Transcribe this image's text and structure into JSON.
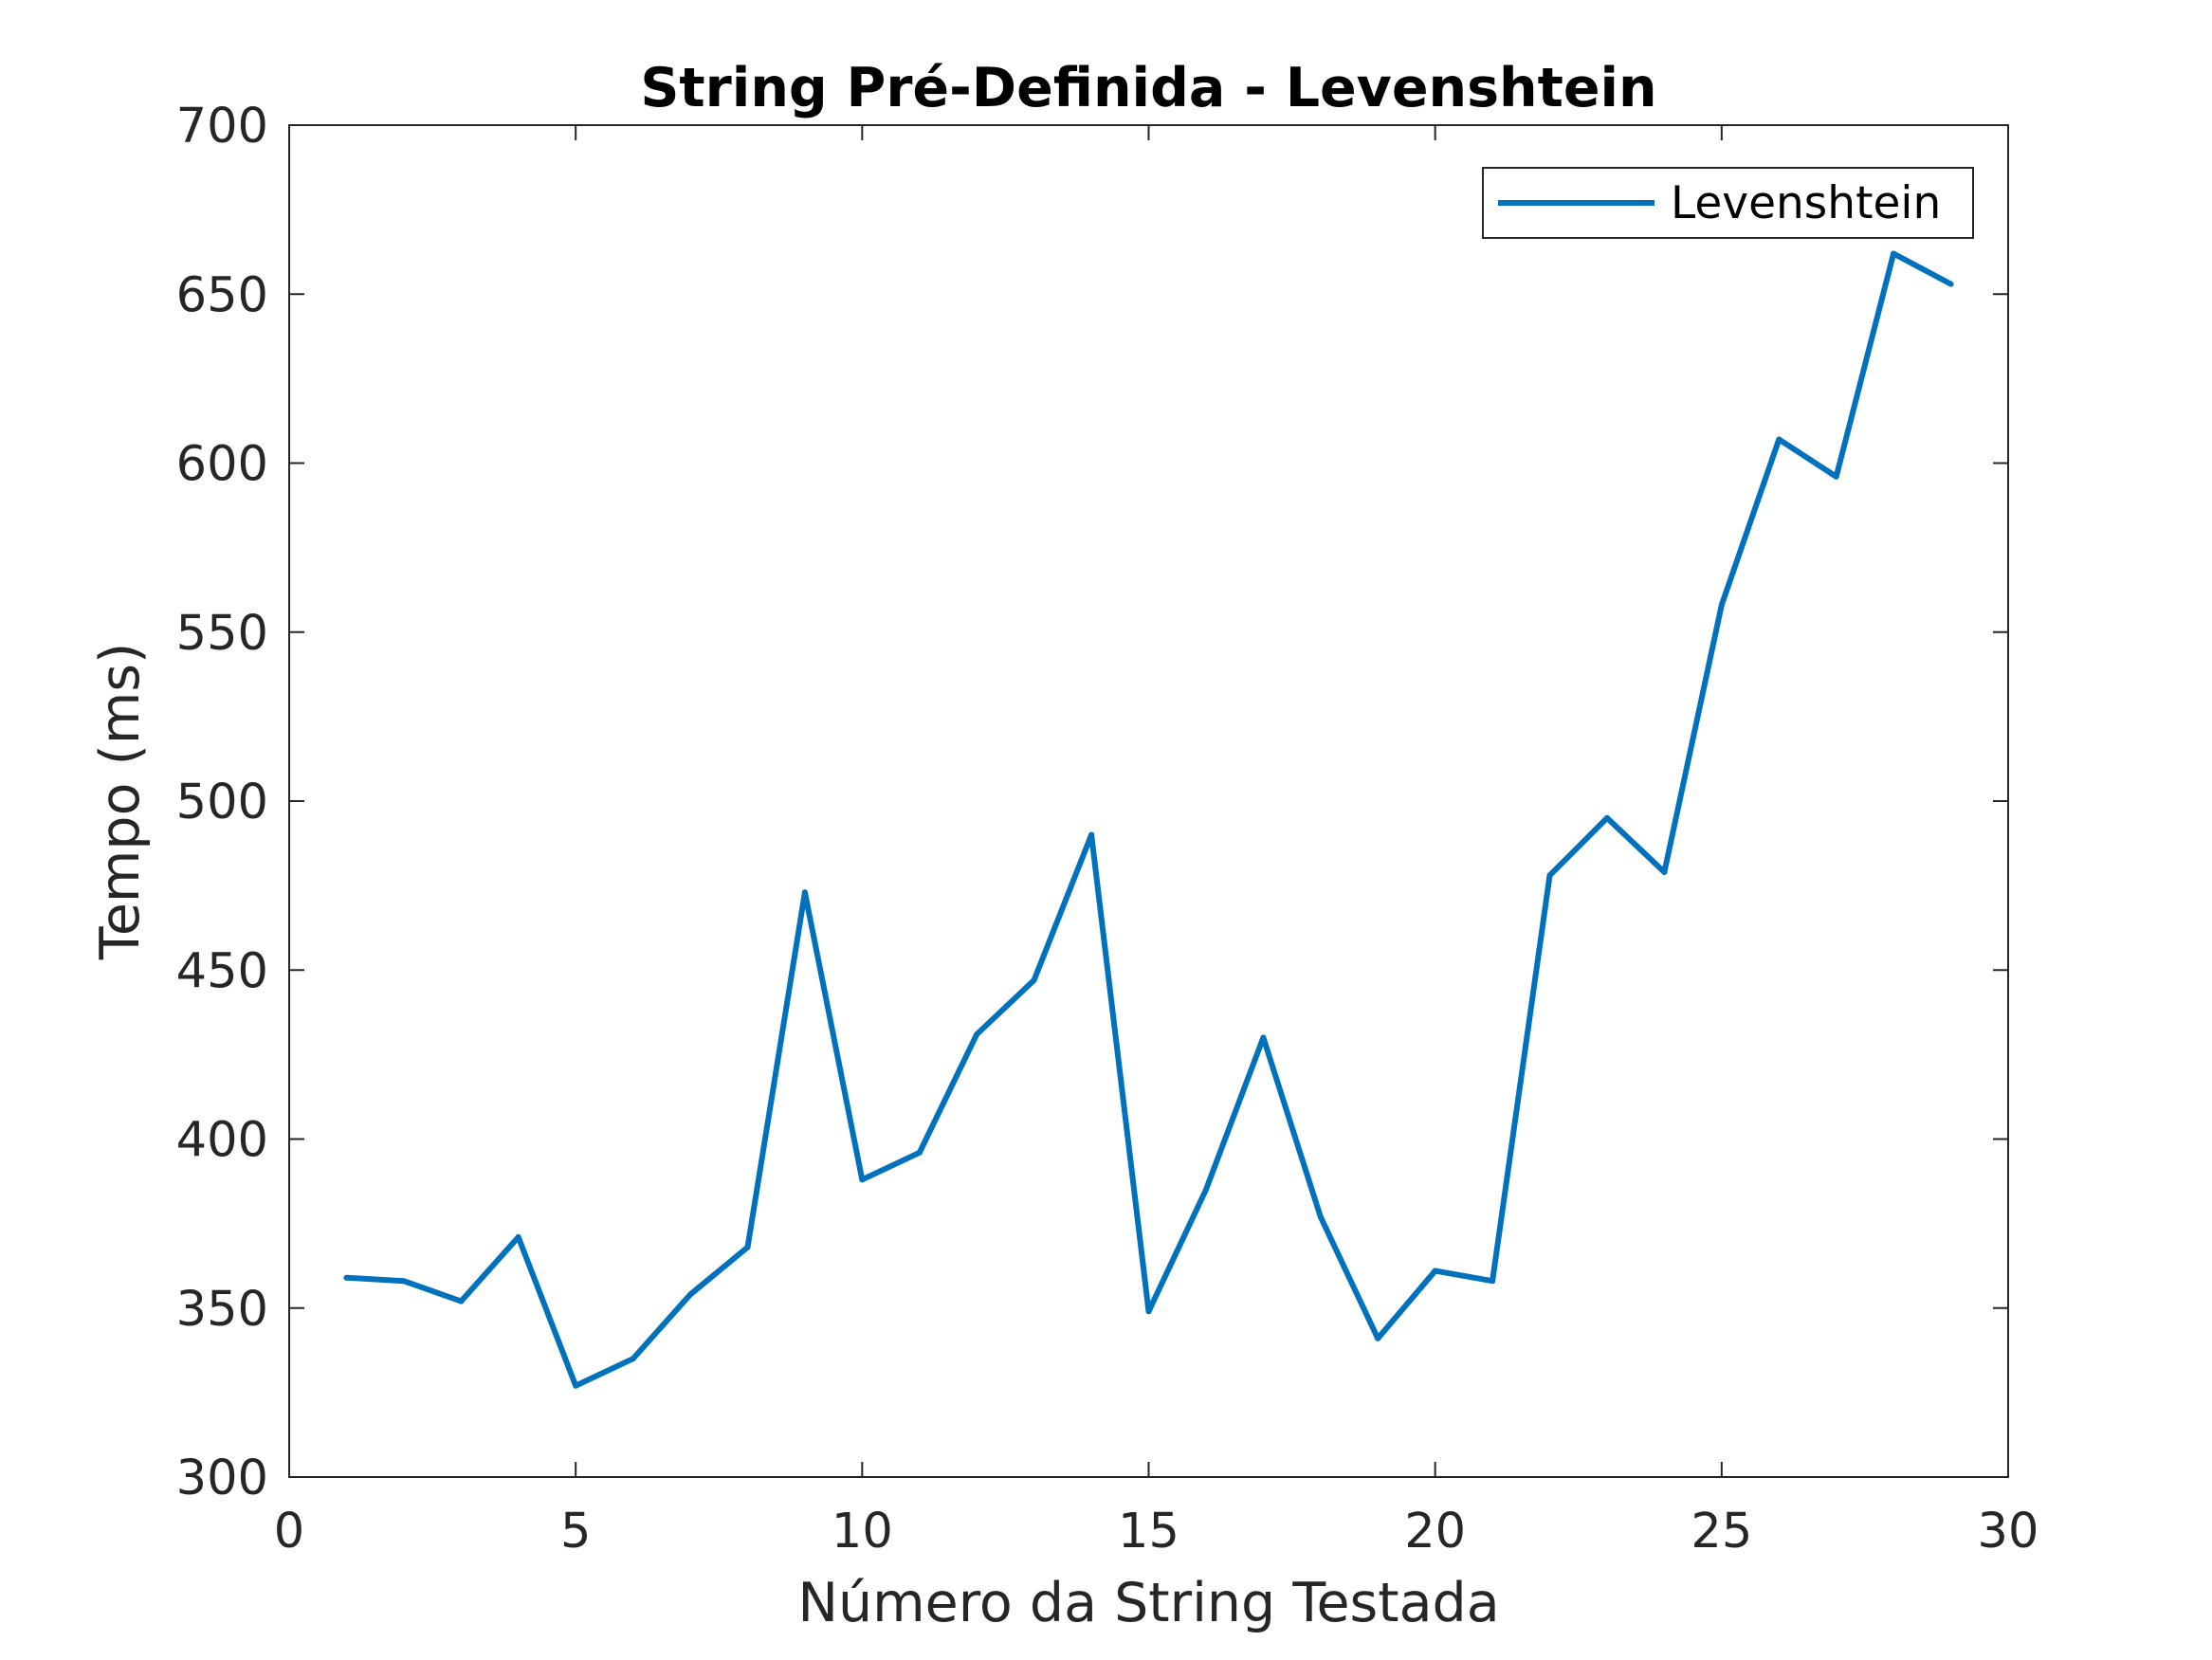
{
  "chart_data": {
    "type": "line",
    "title": "String Pré-Definida - Levenshtein",
    "xlabel": "Número da String Testada",
    "ylabel": "Tempo (ms)",
    "xlim": [
      0,
      30
    ],
    "ylim": [
      300,
      700
    ],
    "xticks": [
      0,
      5,
      10,
      15,
      20,
      25,
      30
    ],
    "yticks": [
      300,
      350,
      400,
      450,
      500,
      550,
      600,
      650,
      700
    ],
    "xtick_labels": [
      "0",
      "5",
      "10",
      "15",
      "20",
      "25",
      "30"
    ],
    "ytick_labels": [
      "300",
      "350",
      "400",
      "450",
      "500",
      "550",
      "600",
      "650",
      "700"
    ],
    "grid": false,
    "legend_position": "top-right",
    "series": [
      {
        "name": "Levenshtein",
        "color": "#0072BD",
        "x": [
          1,
          2,
          3,
          4,
          5,
          6,
          7,
          8,
          9,
          10,
          11,
          12,
          13,
          14,
          15,
          16,
          17,
          18,
          19,
          20,
          21,
          22,
          23,
          24,
          25,
          26,
          27,
          28,
          29
        ],
        "y": [
          359,
          358,
          352,
          371,
          327,
          335,
          354,
          368,
          473,
          388,
          396,
          431,
          447,
          490,
          349,
          385,
          430,
          377,
          341,
          361,
          358,
          478,
          495,
          479,
          558,
          607,
          596,
          662,
          653
        ]
      }
    ]
  }
}
